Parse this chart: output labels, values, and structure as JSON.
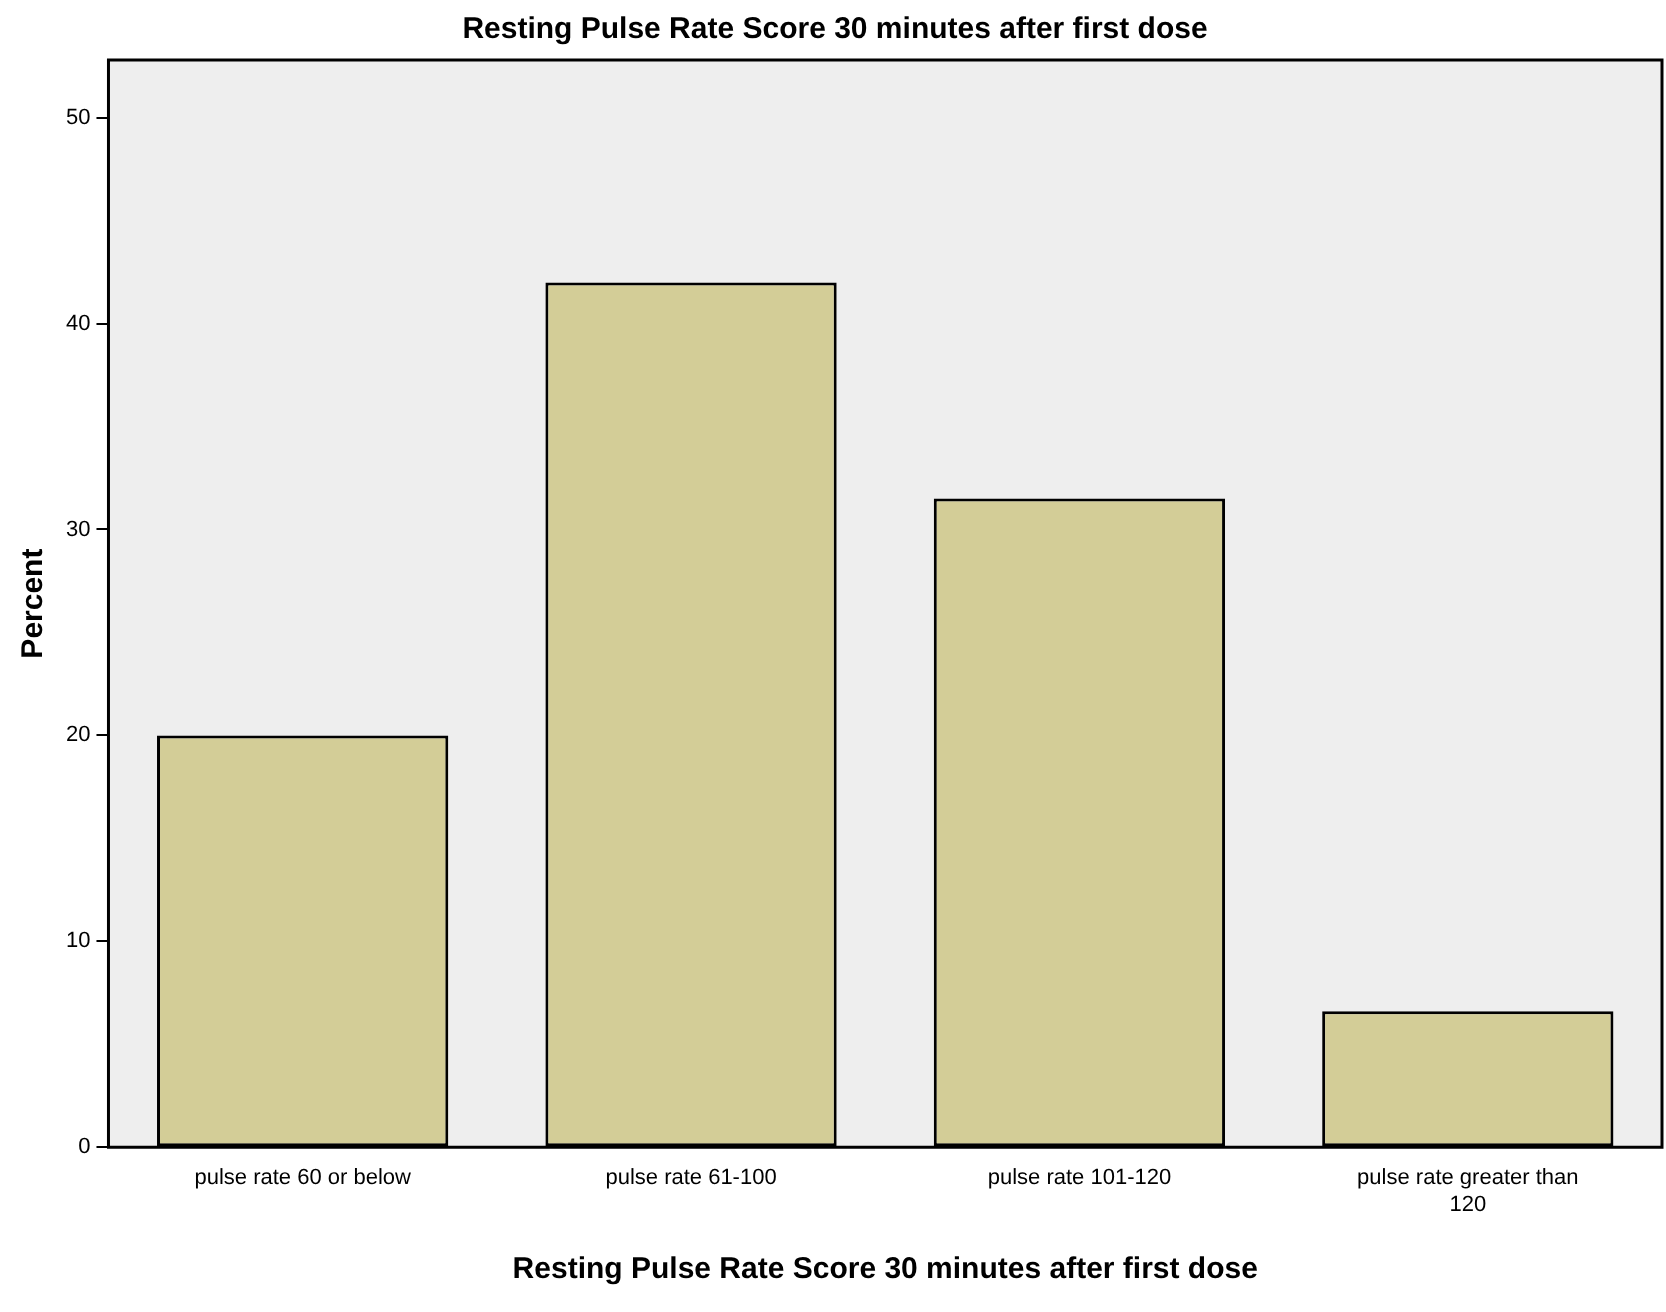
{
  "chart_data": {
    "type": "bar",
    "title": "Resting Pulse Rate Score 30 minutes after first dose",
    "xlabel": "Resting Pulse Rate Score 30 minutes after first dose",
    "ylabel": "Percent",
    "categories": [
      "pulse rate 60 or below",
      "pulse rate 61-100",
      "pulse rate 101-120",
      "pulse rate greater than 120"
    ],
    "values": [
      20.0,
      42.0,
      31.5,
      6.6
    ],
    "color": "#d3cd97",
    "ylim": [
      0,
      52.8
    ],
    "yticks": [
      0,
      10,
      20,
      30,
      40,
      50
    ],
    "grid": false,
    "legend": false
  }
}
